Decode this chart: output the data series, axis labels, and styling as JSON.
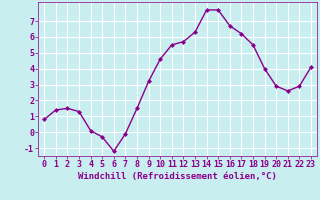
{
  "x": [
    0,
    1,
    2,
    3,
    4,
    5,
    6,
    7,
    8,
    9,
    10,
    11,
    12,
    13,
    14,
    15,
    16,
    17,
    18,
    19,
    20,
    21,
    22,
    23
  ],
  "y": [
    0.8,
    1.4,
    1.5,
    1.3,
    0.1,
    -0.3,
    -1.2,
    -0.1,
    1.5,
    3.2,
    4.6,
    5.5,
    5.7,
    6.3,
    7.7,
    7.7,
    6.7,
    6.2,
    5.5,
    4.0,
    2.9,
    2.6,
    2.9,
    4.1
  ],
  "line_color": "#8B008B",
  "marker": "D",
  "marker_size": 2,
  "background_color": "#c8eef0",
  "grid_color": "#ffffff",
  "xlabel": "Windchill (Refroidissement éolien,°C)",
  "xlabel_color": "#8B008B",
  "tick_color": "#8B008B",
  "ylim": [
    -1.5,
    8.2
  ],
  "xlim": [
    -0.5,
    23.5
  ],
  "yticks": [
    -1,
    0,
    1,
    2,
    3,
    4,
    5,
    6,
    7
  ],
  "xticks": [
    0,
    1,
    2,
    3,
    4,
    5,
    6,
    7,
    8,
    9,
    10,
    11,
    12,
    13,
    14,
    15,
    16,
    17,
    18,
    19,
    20,
    21,
    22,
    23
  ],
  "font_family": "monospace",
  "tick_fontsize": 6,
  "xlabel_fontsize": 6.5,
  "linewidth": 1.0
}
